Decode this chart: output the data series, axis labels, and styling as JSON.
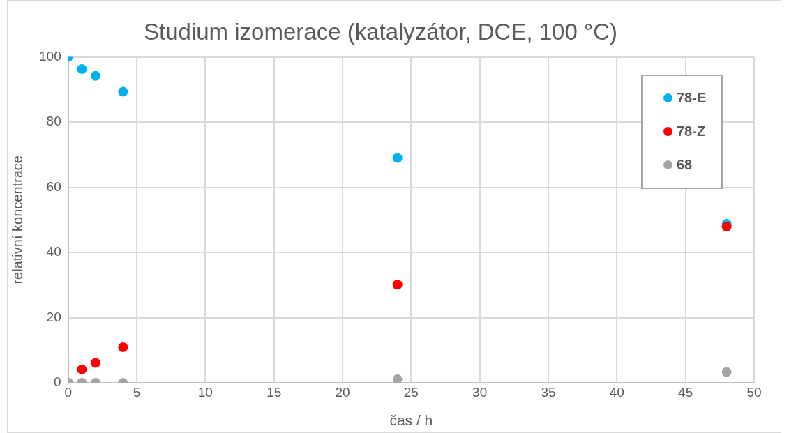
{
  "chart_data": {
    "type": "scatter",
    "title": "Studium izomerace (katalyzátor, DCE, 100 °C)",
    "xlabel": "čas / h",
    "ylabel": "relativní koncentrace",
    "x": [
      0,
      1,
      2,
      4,
      24,
      48
    ],
    "series": [
      {
        "name": "78-E",
        "color": "#00b0f0",
        "values": [
          100,
          96.3,
          94.2,
          89.3,
          69,
          48.8
        ]
      },
      {
        "name": "78-Z",
        "color": "#ff0000",
        "values": [
          0,
          4.1,
          6.1,
          10.9,
          30.1,
          47.9
        ]
      },
      {
        "name": "68",
        "color": "#a5a5a5",
        "values": [
          0,
          0,
          0,
          0,
          1.1,
          3.3
        ]
      }
    ],
    "xlim": [
      0,
      50
    ],
    "xticks": [
      0,
      5,
      10,
      15,
      20,
      25,
      30,
      35,
      40,
      45,
      50
    ],
    "ylim": [
      0,
      100
    ],
    "yticks": [
      0,
      20,
      40,
      60,
      80,
      100
    ],
    "grid": true,
    "legend": "top right",
    "marker": "circle"
  }
}
